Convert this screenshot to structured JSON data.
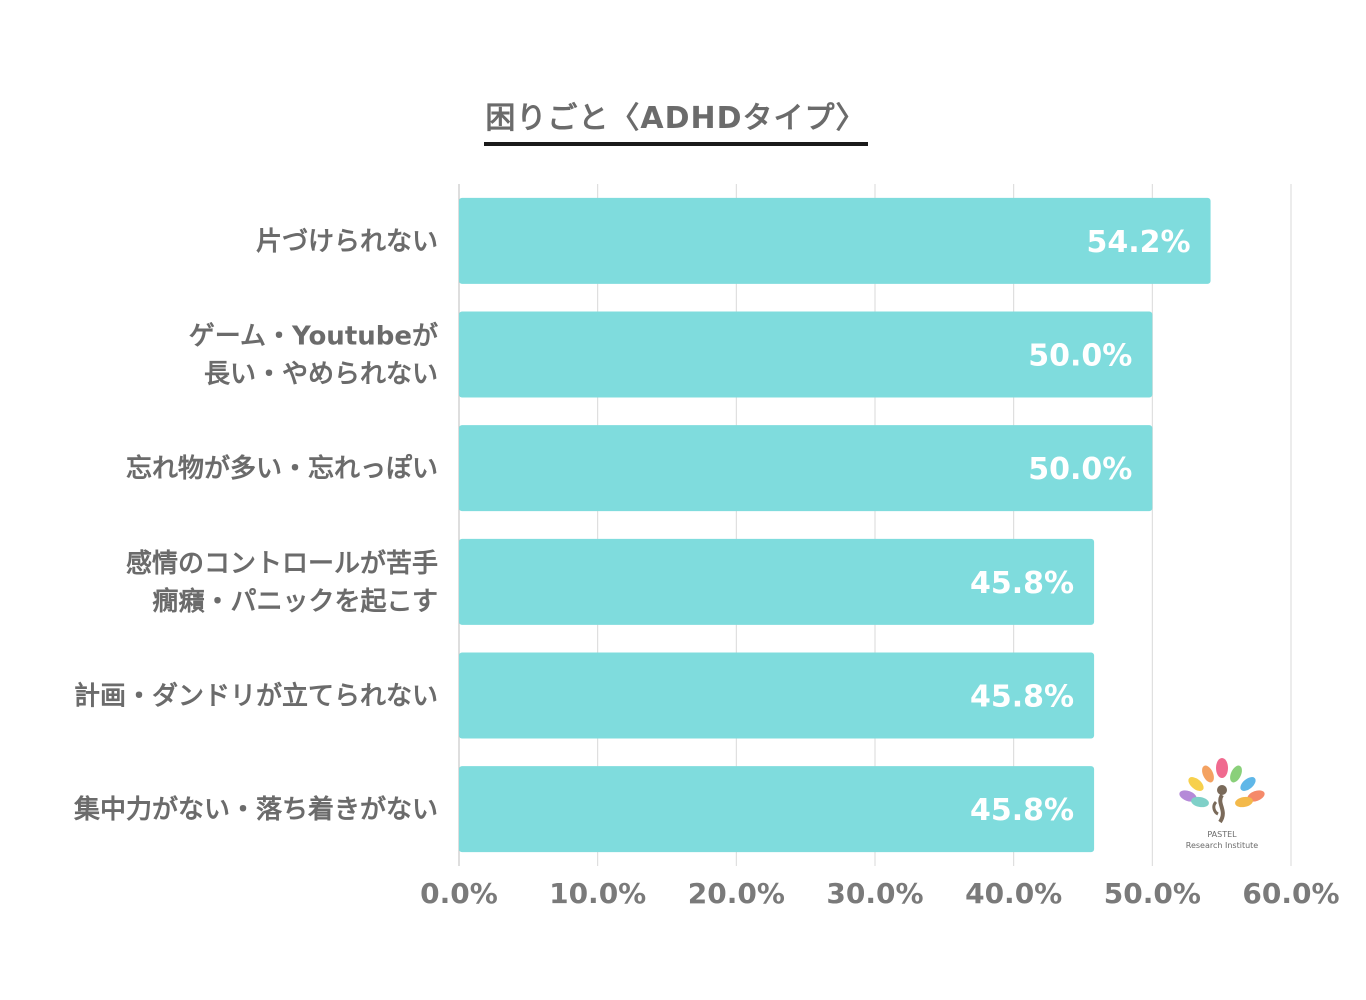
{
  "title": "困りごと〈ADHDタイプ〉",
  "chart_data": {
    "type": "bar",
    "orientation": "horizontal",
    "categories": [
      [
        "片づけられない"
      ],
      [
        "ゲーム・Youtubeが",
        "長い・やめられない"
      ],
      [
        "忘れ物が多い・忘れっぽい"
      ],
      [
        "感情のコントロールが苦手",
        "癇癪・パニックを起こす"
      ],
      [
        "計画・ダンドリが立てられない"
      ],
      [
        "集中力がない・落ち着きがない"
      ]
    ],
    "values": [
      54.2,
      50.0,
      50.0,
      45.8,
      45.8,
      45.8
    ],
    "value_labels": [
      "54.2%",
      "50.0%",
      "50.0%",
      "45.8%",
      "45.8%",
      "45.8%"
    ],
    "xlim": [
      0,
      60
    ],
    "xticks": [
      0,
      10,
      20,
      30,
      40,
      50,
      60
    ],
    "xtick_labels": [
      "0.0%",
      "10.0%",
      "20.0%",
      "30.0%",
      "40.0%",
      "50.0%",
      "60.0%"
    ],
    "grid": true,
    "bar_color": "#7fdcdd",
    "grid_color": "#d9d9d9"
  },
  "logo": {
    "line1": "PASTEL",
    "line2": "Research Institute"
  }
}
